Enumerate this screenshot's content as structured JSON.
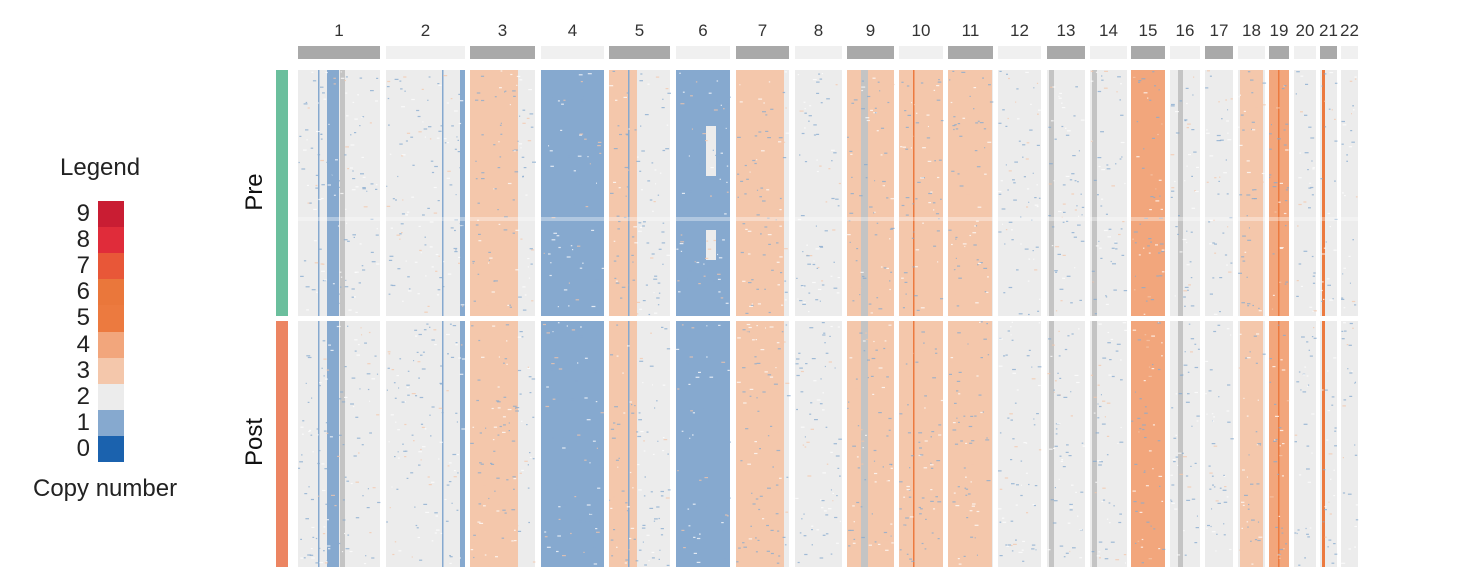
{
  "colors": {
    "cn0": "#1b62ae",
    "cn1": "#86a9cf",
    "cn2": "#ececec",
    "cn3": "#f4c7ab",
    "cn4": "#f2a67c",
    "cn5": "#ec7a3f",
    "cn6": "#ea773b",
    "cn7": "#e85738",
    "cn8": "#e02c3a",
    "cn9": "#c91d33",
    "pre_group": "#6bbf9d",
    "post_group": "#ec8562",
    "chrom_bar_dark": "#a9a9a9",
    "chrom_bar_light": "#f0f0f0"
  },
  "chart_data": {
    "type": "heatmap",
    "legend": {
      "title": "Legend",
      "caption": "Copy number",
      "levels": [
        "0",
        "1",
        "2",
        "3",
        "4",
        "5",
        "6",
        "7",
        "8",
        "9"
      ]
    },
    "groups": [
      "Pre",
      "Post"
    ],
    "chromosomes": [
      "1",
      "2",
      "3",
      "4",
      "5",
      "6",
      "7",
      "8",
      "9",
      "10",
      "11",
      "12",
      "13",
      "14",
      "15",
      "16",
      "17",
      "18",
      "19",
      "20",
      "21",
      "22"
    ],
    "dominant_copy_number": {
      "Pre": {
        "1": 1,
        "2": 2,
        "3": 3,
        "4": 1,
        "5": 3,
        "6": 1,
        "7": 3,
        "8": 2,
        "9": 3,
        "10": 3,
        "11": 3,
        "12": 2,
        "13": 2,
        "14": 2,
        "15": 4,
        "16": 2,
        "17": 2,
        "18": 3,
        "19": 4,
        "20": 2,
        "21": 5,
        "22": 2
      },
      "Post": {
        "1": 1,
        "2": 2,
        "3": 3,
        "4": 1,
        "5": 3,
        "6": 1,
        "7": 3,
        "8": 2,
        "9": 3,
        "10": 3,
        "11": 3,
        "12": 2,
        "13": 2,
        "14": 2,
        "15": 4,
        "16": 2,
        "17": 2,
        "18": 3,
        "19": 4,
        "20": 2,
        "21": 5,
        "22": 2
      }
    }
  }
}
